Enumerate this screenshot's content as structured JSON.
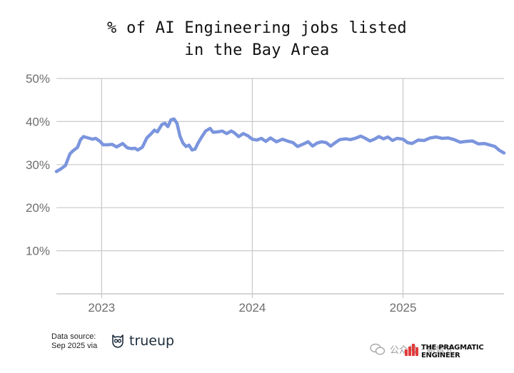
{
  "chart_data": {
    "type": "line",
    "title_lines": [
      "% of AI Engineering jobs listed",
      "in the Bay Area"
    ],
    "xlabel": "",
    "ylabel": "",
    "xlim": [
      2022.7,
      2025.67
    ],
    "ylim": [
      0,
      50
    ],
    "y_ticks": [
      {
        "value": 10,
        "label": "10%"
      },
      {
        "value": 20,
        "label": "20%"
      },
      {
        "value": 30,
        "label": "30%"
      },
      {
        "value": 40,
        "label": "40%"
      },
      {
        "value": 50,
        "label": "50%"
      }
    ],
    "x_ticks": [
      {
        "value": 2023,
        "label": "2023"
      },
      {
        "value": 2024,
        "label": "2024"
      },
      {
        "value": 2025,
        "label": "2025"
      }
    ],
    "grid": true,
    "line_color": "#7b95dd",
    "series": [
      {
        "x": [
          2022.7,
          2022.73,
          2022.76,
          2022.79,
          2022.81,
          2022.84,
          2022.86,
          2022.88,
          2022.91,
          2022.94,
          2022.96,
          2022.99,
          2023.01,
          2023.04,
          2023.07,
          2023.1,
          2023.12,
          2023.14,
          2023.17,
          2023.2,
          2023.22,
          2023.24,
          2023.27,
          2023.3,
          2023.33,
          2023.35,
          2023.37,
          2023.4,
          2023.42,
          2023.44,
          2023.46,
          2023.48,
          2023.5,
          2023.52,
          2023.54,
          2023.56,
          2023.58,
          2023.6,
          2023.62,
          2023.64,
          2023.66,
          2023.69,
          2023.72,
          2023.74,
          2023.77,
          2023.8,
          2023.83,
          2023.86,
          2023.88,
          2023.91,
          2023.94,
          2023.97,
          2024.0,
          2024.03,
          2024.06,
          2024.09,
          2024.12,
          2024.16,
          2024.2,
          2024.24,
          2024.27,
          2024.3,
          2024.34,
          2024.37,
          2024.4,
          2024.43,
          2024.46,
          2024.49,
          2024.52,
          2024.55,
          2024.58,
          2024.62,
          2024.65,
          2024.69,
          2024.72,
          2024.75,
          2024.78,
          2024.81,
          2024.84,
          2024.87,
          2024.9,
          2024.93,
          2024.96,
          2025.0,
          2025.03,
          2025.06,
          2025.1,
          2025.14,
          2025.18,
          2025.22,
          2025.26,
          2025.3,
          2025.34,
          2025.38,
          2025.42,
          2025.46,
          2025.5,
          2025.54,
          2025.58,
          2025.61,
          2025.64,
          2025.67
        ],
        "y": [
          28.4,
          29.0,
          29.8,
          32.5,
          33.2,
          34.0,
          35.8,
          36.5,
          36.2,
          35.9,
          36.1,
          35.4,
          34.6,
          34.6,
          34.7,
          34.1,
          34.5,
          34.9,
          33.9,
          33.7,
          33.8,
          33.4,
          34.0,
          36.2,
          37.2,
          38.0,
          37.6,
          39.3,
          39.6,
          38.8,
          40.4,
          40.6,
          39.6,
          36.6,
          35.0,
          34.2,
          34.5,
          33.4,
          33.6,
          35.0,
          36.2,
          37.8,
          38.4,
          37.5,
          37.6,
          37.8,
          37.2,
          37.8,
          37.4,
          36.5,
          37.2,
          36.7,
          35.9,
          35.7,
          36.1,
          35.4,
          36.2,
          35.3,
          35.9,
          35.4,
          35.1,
          34.2,
          34.8,
          35.3,
          34.3,
          35.0,
          35.3,
          35.1,
          34.3,
          35.1,
          35.8,
          36.0,
          35.8,
          36.2,
          36.6,
          36.1,
          35.5,
          35.9,
          36.5,
          36.0,
          36.4,
          35.6,
          36.1,
          35.9,
          35.1,
          34.9,
          35.7,
          35.6,
          36.2,
          36.4,
          36.1,
          36.2,
          35.8,
          35.2,
          35.4,
          35.5,
          34.8,
          34.9,
          34.5,
          34.2,
          33.3,
          32.7
        ]
      }
    ]
  },
  "footer": {
    "source_line1": "Data source:",
    "source_line2": "Sep 2025 via",
    "source_brand": "trueup",
    "watermark_text": "公众号 · 新智元",
    "publisher": "THE PRAGMATIC ENGINEER"
  }
}
